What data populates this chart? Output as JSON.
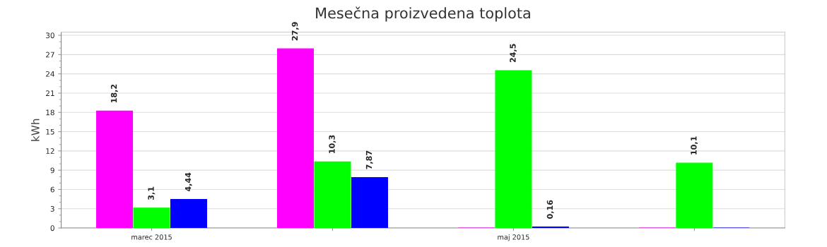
{
  "chart_data": {
    "type": "bar",
    "title": "Mesečna proizvedena toplota",
    "ylabel": "kWh",
    "categories": [
      "marec 2015",
      null,
      "maj 2015",
      null
    ],
    "series": [
      {
        "color": "#ff00ff",
        "values": [
          18.2,
          27.9,
          0,
          0
        ],
        "value_labels": [
          "18,2",
          "27,9",
          null,
          null
        ]
      },
      {
        "color": "#00ff00",
        "values": [
          3.1,
          10.3,
          24.5,
          10.1
        ],
        "value_labels": [
          "3,1",
          "10,3",
          "24,5",
          "10,1"
        ]
      },
      {
        "color": "#0000ff",
        "values": [
          4.44,
          7.87,
          0.16,
          0
        ],
        "value_labels": [
          "4,44",
          "7,87",
          "0,16",
          null
        ]
      }
    ],
    "ylim": [
      0,
      30.5
    ],
    "yticks": [
      0,
      3,
      6,
      9,
      12,
      15,
      18,
      21,
      24,
      27,
      30
    ],
    "grid": "y",
    "legend": false
  }
}
